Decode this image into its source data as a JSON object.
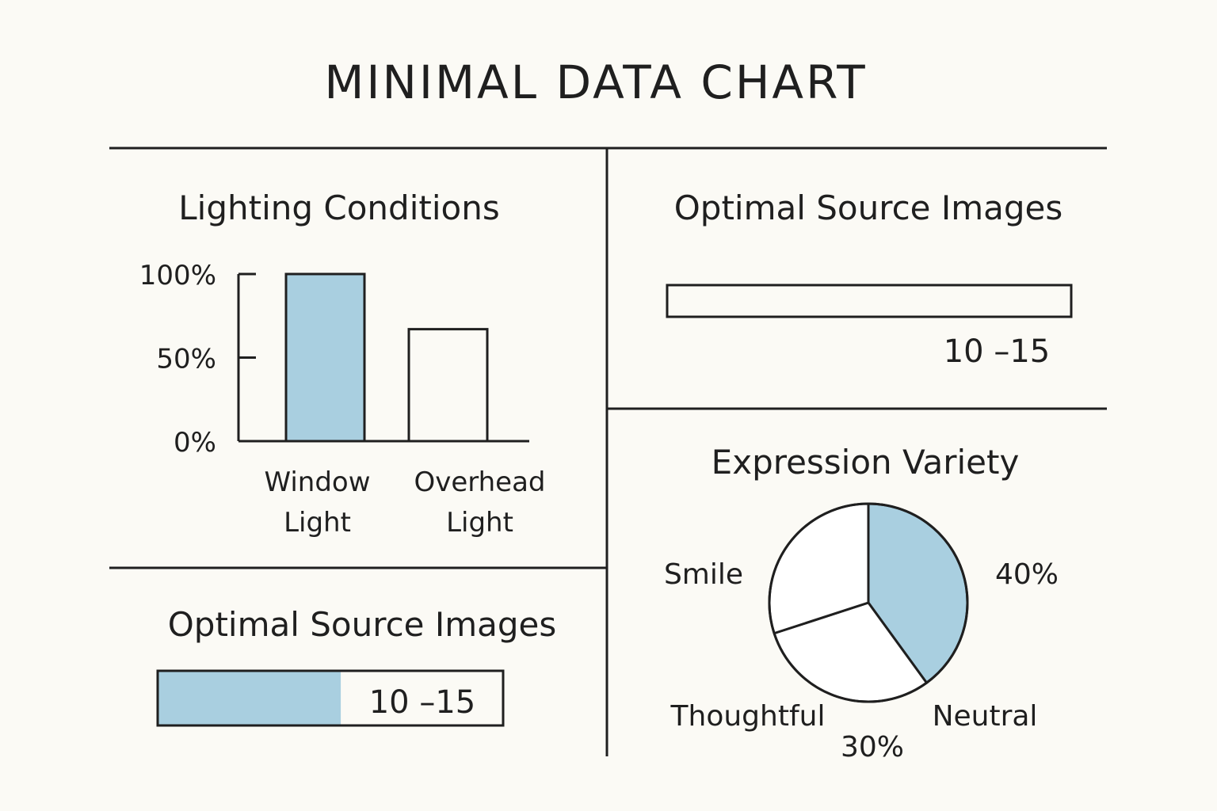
{
  "title": "MINIMAL DATA CHART",
  "colors": {
    "accent": "#A9CFE0",
    "ink": "#1f1f1f",
    "background": "#FBFAF5"
  },
  "chart_data": [
    {
      "type": "bar",
      "title": "Lighting Conditions",
      "categories": [
        [
          "Window",
          "Light"
        ],
        [
          "Overhead",
          "Light"
        ]
      ],
      "values": [
        100,
        67
      ],
      "ylim": [
        0,
        100
      ],
      "yticks": [
        "0%",
        "50%",
        "100%"
      ],
      "ytick_values": [
        0,
        50,
        100
      ],
      "highlight": [
        true,
        false
      ]
    },
    {
      "type": "bar",
      "title": "Optimal Source Images",
      "orientation": "horizontal",
      "label": "10 –15",
      "fill_fraction": 0.53
    },
    {
      "type": "bar",
      "title": "Optimal Source Images",
      "orientation": "horizontal",
      "label": "10 –15",
      "fill_fraction": 0
    },
    {
      "type": "pie",
      "title": "Expression Variety",
      "slices": [
        {
          "name": "Smile",
          "value": 40,
          "label": "40%",
          "highlight": true
        },
        {
          "name": "Neutral",
          "value": 30,
          "label": "",
          "highlight": false
        },
        {
          "name": "Thoughtful",
          "value": 30,
          "label": "30%",
          "highlight": false
        }
      ]
    }
  ]
}
